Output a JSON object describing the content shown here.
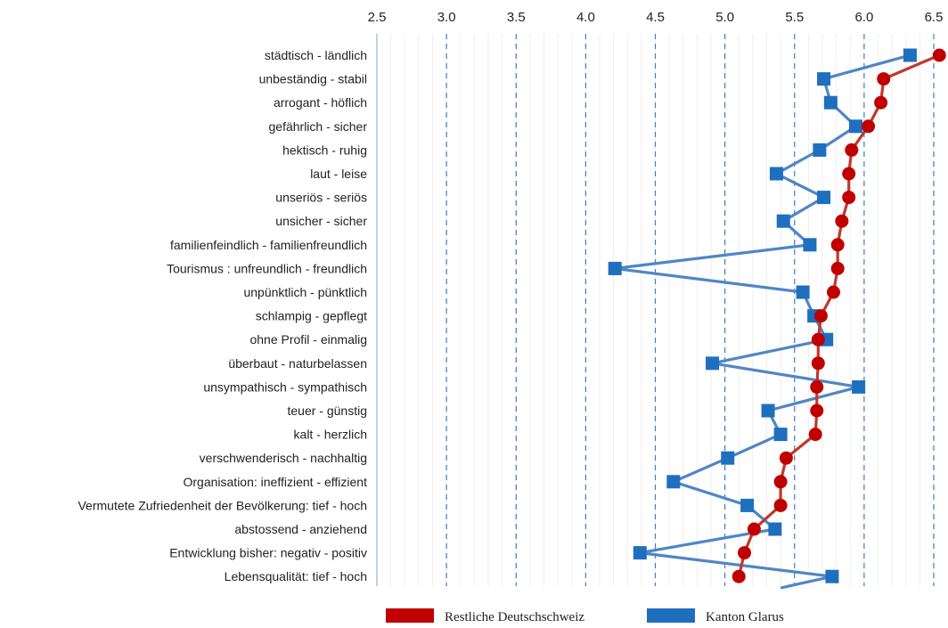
{
  "chart_data": {
    "type": "line",
    "orientation": "horizontal-values",
    "xlim": [
      2.5,
      6.5
    ],
    "x_ticks": [
      "2.5",
      "3.0",
      "3.5",
      "4.0",
      "4.5",
      "5.0",
      "5.5",
      "6.0",
      "6.5"
    ],
    "grid": "vertical-dashed",
    "legend_position": "bottom",
    "categories": [
      "städtisch - ländlich",
      "unbeständig - stabil",
      "arrogant - höflich",
      "gefährlich - sicher",
      "hektisch - ruhig",
      "laut - leise",
      "unseriös - seriös",
      "unsicher - sicher",
      "familienfeindlich - familienfreundlich",
      "Tourismus : unfreundlich - freundlich",
      "unpünktlich - pünktlich",
      "schlampig - gepflegt",
      "ohne Profil - einmalig",
      "überbaut - naturbelassen",
      "unsympathisch - sympathisch",
      "teuer - günstig",
      "kalt - herzlich",
      "verschwenderisch - nachhaltig",
      "Organisation: ineffizient - effizient",
      "Vermutete Zufriedenheit der Bevölkerung: tief - hoch",
      "abstossend - anziehend",
      "Entwicklung bisher: negativ - positiv",
      "Lebensqualität: tief - hoch"
    ],
    "series": [
      {
        "name": "Restliche Deutschschweiz",
        "color": "#c00000",
        "marker": "circle",
        "values": [
          6.54,
          6.14,
          6.12,
          6.03,
          5.91,
          5.89,
          5.89,
          5.84,
          5.81,
          5.81,
          5.78,
          5.69,
          5.67,
          5.67,
          5.66,
          5.66,
          5.65,
          5.44,
          5.4,
          5.4,
          5.21,
          5.14,
          5.1
        ]
      },
      {
        "name": "Kanton Glarus",
        "color": "#1f6fbf",
        "marker": "square",
        "values": [
          6.33,
          5.71,
          5.76,
          5.94,
          5.68,
          5.37,
          5.71,
          5.42,
          5.61,
          4.21,
          5.56,
          5.64,
          5.73,
          4.91,
          5.96,
          5.31,
          5.4,
          5.02,
          4.63,
          5.16,
          5.36,
          4.39,
          5.77
        ]
      }
    ],
    "legend": [
      "Restliche Deutschschweiz",
      "Kanton Glarus"
    ]
  }
}
